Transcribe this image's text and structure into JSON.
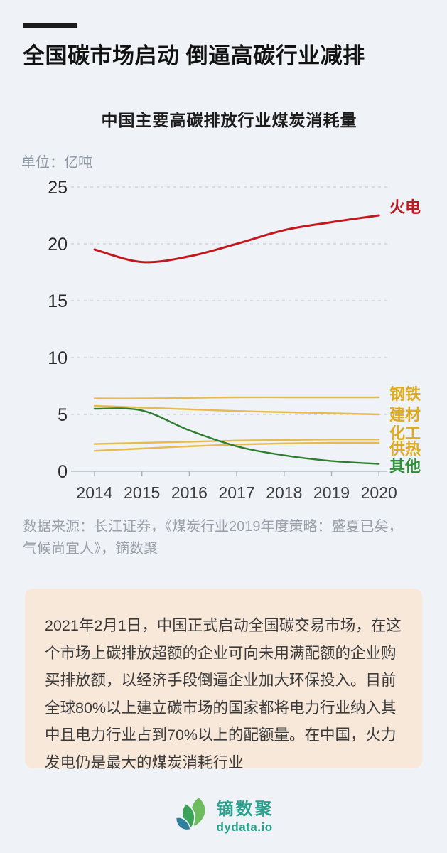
{
  "header": {
    "title": "全国碳市场启动 倒逼高碳行业减排"
  },
  "chart_data": {
    "type": "line",
    "title": "中国主要高碳排放行业煤炭消耗量",
    "unit_label": "单位：亿吨",
    "x": [
      "2014",
      "2015",
      "2016",
      "2017",
      "2018",
      "2019",
      "2020"
    ],
    "yticks": [
      0,
      5,
      10,
      15,
      20,
      25
    ],
    "ylim": [
      0,
      25
    ],
    "grid": "horizontal-dashed",
    "legend_position": "right-end-labels",
    "series": [
      {
        "name": "火电",
        "line_color": "#c2191f",
        "label_color": "#c2191f",
        "values": [
          19.5,
          18.4,
          18.9,
          20.0,
          21.2,
          21.9,
          22.5
        ]
      },
      {
        "name": "钢铁",
        "line_color": "#e7ba4d",
        "label_color": "#dfab1c",
        "values": [
          6.4,
          6.4,
          6.45,
          6.5,
          6.5,
          6.5,
          6.5
        ]
      },
      {
        "name": "建材",
        "line_color": "#e7ba4d",
        "label_color": "#dfab1c",
        "values": [
          5.75,
          5.6,
          5.45,
          5.3,
          5.2,
          5.1,
          5.0
        ]
      },
      {
        "name": "化工",
        "line_color": "#e7ba4d",
        "label_color": "#dfab1c",
        "values": [
          2.4,
          2.5,
          2.6,
          2.7,
          2.75,
          2.8,
          2.8
        ]
      },
      {
        "name": "供热",
        "line_color": "#e7ba4d",
        "label_color": "#dfab1c",
        "values": [
          1.8,
          2.0,
          2.2,
          2.35,
          2.45,
          2.5,
          2.5
        ]
      },
      {
        "name": "其他",
        "line_color": "#2e7d32",
        "label_color": "#2e9138",
        "values": [
          5.5,
          5.35,
          3.6,
          2.2,
          1.4,
          0.9,
          0.65
        ]
      }
    ]
  },
  "source": {
    "text": "数据来源：长江证券，《煤炭行业2019年度策略：盛夏已矣，气候尚宜人》，镝数聚"
  },
  "description": {
    "text": "2021年2月1日，中国正式启动全国碳交易市场，在这个市场上碳排放超额的企业可向未用满配额的企业购买排放额，以经济手段倒逼企业加大环保投入。目前全球80%以上建立碳市场的国家都将电力行业纳入其中且电力行业占到70%以上的配额量。在中国，火力发电仍是最大的煤炭消耗行业"
  },
  "footer": {
    "brand_name": "镝数聚",
    "brand_domain": "dydata.io"
  }
}
